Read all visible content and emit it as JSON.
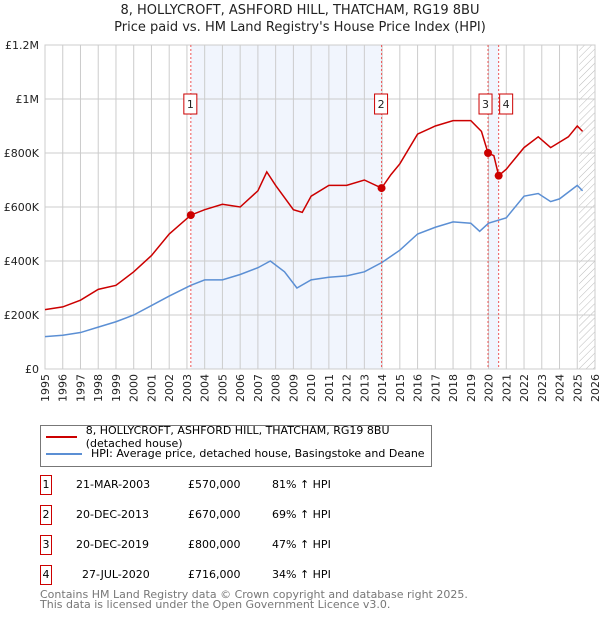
{
  "chart_data": {
    "type": "line",
    "title": "8, HOLLYCROFT, ASHFORD HILL, THATCHAM, RG19 8BU",
    "subtitle": "Price paid vs. HM Land Registry's House Price Index (HPI)",
    "xlim": [
      1995,
      2026
    ],
    "ylim": [
      0,
      1200000
    ],
    "x_ticks": [
      "1995",
      "1996",
      "1997",
      "1998",
      "1999",
      "2000",
      "2001",
      "2002",
      "2003",
      "2004",
      "2005",
      "2006",
      "2007",
      "2008",
      "2009",
      "2010",
      "2011",
      "2012",
      "2013",
      "2014",
      "2015",
      "2016",
      "2017",
      "2018",
      "2019",
      "2020",
      "2021",
      "2022",
      "2023",
      "2024",
      "2025",
      "2026"
    ],
    "y_ticks": [
      {
        "v": 0,
        "label": "£0"
      },
      {
        "v": 200000,
        "label": "£200K"
      },
      {
        "v": 400000,
        "label": "£400K"
      },
      {
        "v": 600000,
        "label": "£600K"
      },
      {
        "v": 800000,
        "label": "£800K"
      },
      {
        "v": 1000000,
        "label": "£1M"
      },
      {
        "v": 1200000,
        "label": "£1.2M"
      }
    ],
    "grid": true,
    "series": [
      {
        "name": "8, HOLLYCROFT, ASHFORD HILL, THATCHAM, RG19 8BU (detached house)",
        "color": "#cc0000",
        "x": [
          1995,
          1996,
          1997,
          1998,
          1999,
          2000,
          2001,
          2002,
          2003.22,
          2004,
          2005,
          2006,
          2007,
          2007.5,
          2008,
          2009,
          2009.5,
          2010,
          2011,
          2012,
          2013,
          2013.97,
          2014.5,
          2015,
          2016,
          2017,
          2018,
          2019,
          2019.6,
          2019.97,
          2020.3,
          2020.57,
          2021,
          2022,
          2022.8,
          2023.5,
          2024.5,
          2025,
          2025.3
        ],
        "y": [
          220000,
          230000,
          255000,
          295000,
          310000,
          360000,
          420000,
          500000,
          570000,
          590000,
          610000,
          600000,
          660000,
          730000,
          680000,
          590000,
          580000,
          640000,
          680000,
          680000,
          700000,
          670000,
          720000,
          760000,
          870000,
          900000,
          920000,
          920000,
          880000,
          800000,
          790000,
          716000,
          740000,
          820000,
          860000,
          820000,
          860000,
          900000,
          880000
        ]
      },
      {
        "name": "HPI: Average price, detached house, Basingstoke and Deane",
        "color": "#5b8fd4",
        "x": [
          1995,
          1996,
          1997,
          1998,
          1999,
          2000,
          2001,
          2002,
          2003.22,
          2004,
          2005,
          2006,
          2007,
          2007.7,
          2008.5,
          2009.2,
          2010,
          2011,
          2012,
          2013,
          2014,
          2015,
          2016,
          2017,
          2018,
          2019,
          2019.5,
          2020,
          2021,
          2022,
          2022.8,
          2023.5,
          2024,
          2025,
          2025.3
        ],
        "y": [
          120000,
          125000,
          135000,
          155000,
          175000,
          200000,
          235000,
          270000,
          310000,
          330000,
          330000,
          350000,
          375000,
          400000,
          360000,
          300000,
          330000,
          340000,
          345000,
          360000,
          395000,
          440000,
          500000,
          525000,
          545000,
          540000,
          510000,
          540000,
          560000,
          640000,
          650000,
          620000,
          630000,
          680000,
          660000
        ]
      }
    ],
    "transactions": [
      {
        "n": "1",
        "x": 2003.22,
        "y": 570000,
        "date": "21-MAR-2003",
        "price": "£570,000",
        "hpi": "81% ↑ HPI"
      },
      {
        "n": "2",
        "x": 2013.97,
        "y": 670000,
        "date": "20-DEC-2013",
        "price": "£670,000",
        "hpi": "69% ↑ HPI"
      },
      {
        "n": "3",
        "x": 2019.97,
        "y": 800000,
        "date": "20-DEC-2019",
        "price": "£800,000",
        "hpi": "47% ↑ HPI"
      },
      {
        "n": "4",
        "x": 2020.57,
        "y": 716000,
        "date": "27-JUL-2020",
        "price": "£716,000",
        "hpi": "34% ↑ HPI"
      }
    ],
    "hatch_from": 2025.1
  },
  "footer1": "Contains HM Land Registry data © Crown copyright and database right 2025.",
  "footer2": "This data is licensed under the Open Government Licence v3.0."
}
